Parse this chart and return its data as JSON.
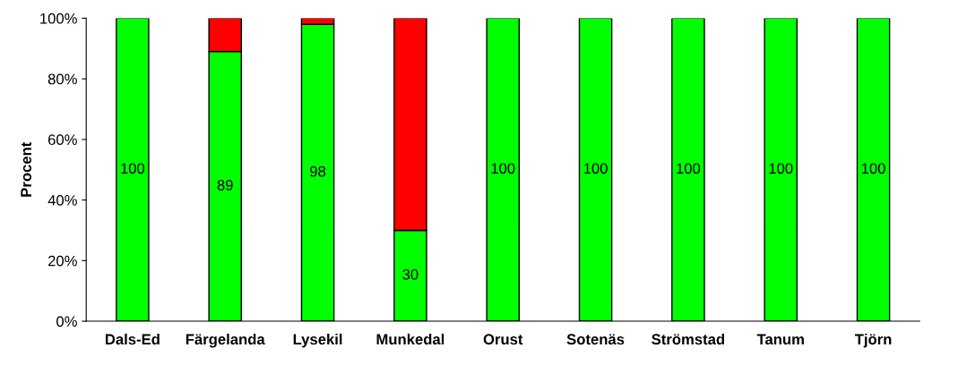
{
  "chart_data": {
    "type": "bar",
    "stacked": true,
    "ylabel": "Procent",
    "categories": [
      "Dals-Ed",
      "Färgelanda",
      "Lysekil",
      "Munkedal",
      "Orust",
      "Sotenäs",
      "Strömstad",
      "Tanum",
      "Tjörn"
    ],
    "series": [
      {
        "color": "#00ff00",
        "values": [
          100,
          89,
          98,
          30,
          100,
          100,
          100,
          100,
          100
        ],
        "value_labels": [
          "100",
          "89",
          "98",
          "30",
          "100",
          "100",
          "100",
          "100",
          "100"
        ]
      },
      {
        "color": "#ff0000",
        "values": [
          0,
          11,
          2,
          70,
          0,
          0,
          0,
          0,
          0
        ]
      }
    ],
    "ylim": [
      0,
      100
    ],
    "yticks": [
      {
        "value": 0,
        "label": "0%"
      },
      {
        "value": 20,
        "label": "20%"
      },
      {
        "value": 40,
        "label": "40%"
      },
      {
        "value": 60,
        "label": "60%"
      },
      {
        "value": 80,
        "label": "80%"
      },
      {
        "value": 100,
        "label": "100%"
      }
    ],
    "grid": false
  }
}
